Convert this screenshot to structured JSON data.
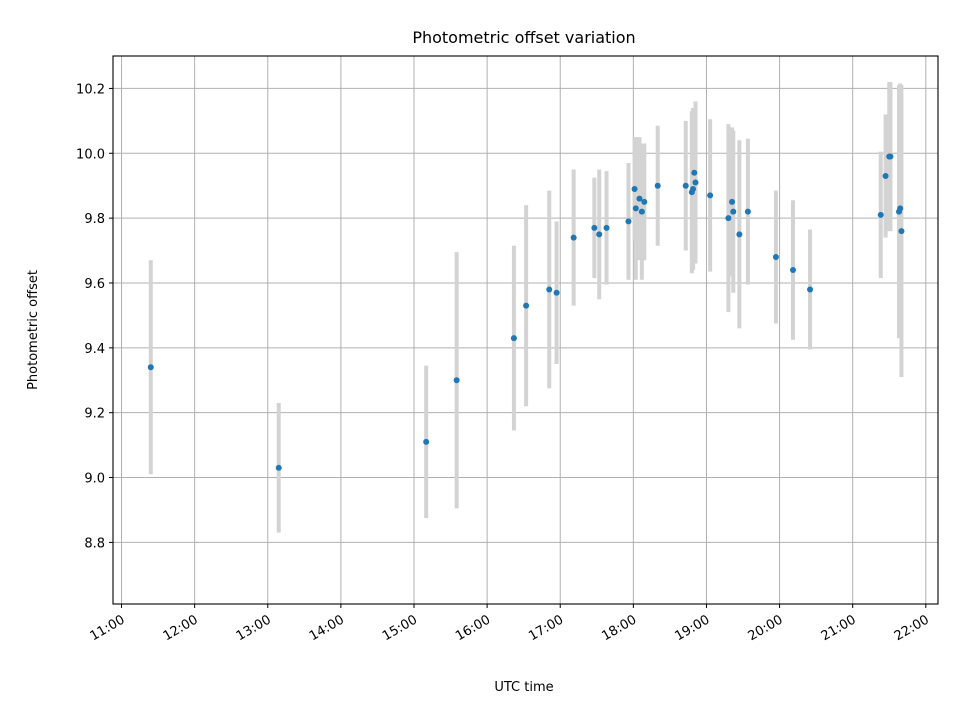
{
  "chart_data": {
    "type": "scatter",
    "title": "Photometric offset variation",
    "xlabel": "UTC time",
    "ylabel": "Photometric offset",
    "xlim": [
      "10:53",
      "22:10"
    ],
    "ylim": [
      8.61,
      10.3
    ],
    "grid": true,
    "x_ticks": [
      "11:00",
      "12:00",
      "13:00",
      "14:00",
      "15:00",
      "16:00",
      "17:00",
      "18:00",
      "19:00",
      "20:00",
      "21:00",
      "22:00"
    ],
    "y_ticks": [
      "8.8",
      "9.0",
      "9.2",
      "9.4",
      "9.6",
      "9.8",
      "10.0",
      "10.2"
    ],
    "point_color": "#1f77b4",
    "errorbar_color": "#d3d3d3",
    "points": [
      {
        "x": "11:24",
        "y": 9.34,
        "err": 0.33
      },
      {
        "x": "13:09",
        "y": 9.03,
        "err": 0.2
      },
      {
        "x": "15:10",
        "y": 9.11,
        "err": 0.235
      },
      {
        "x": "15:35",
        "y": 9.3,
        "err": 0.395
      },
      {
        "x": "16:22",
        "y": 9.43,
        "err": 0.285
      },
      {
        "x": "16:32",
        "y": 9.53,
        "err": 0.31
      },
      {
        "x": "16:51",
        "y": 9.58,
        "err": 0.305
      },
      {
        "x": "16:57",
        "y": 9.57,
        "err": 0.22
      },
      {
        "x": "17:11",
        "y": 9.74,
        "err": 0.21
      },
      {
        "x": "17:28",
        "y": 9.77,
        "err": 0.155
      },
      {
        "x": "17:32",
        "y": 9.75,
        "err": 0.2
      },
      {
        "x": "17:38",
        "y": 9.77,
        "err": 0.175
      },
      {
        "x": "17:56",
        "y": 9.79,
        "err": 0.18
      },
      {
        "x": "18:01",
        "y": 9.89,
        "err": 0.16
      },
      {
        "x": "18:02",
        "y": 9.83,
        "err": 0.22
      },
      {
        "x": "18:05",
        "y": 9.86,
        "err": 0.19
      },
      {
        "x": "18:07",
        "y": 9.82,
        "err": 0.21
      },
      {
        "x": "18:09",
        "y": 9.85,
        "err": 0.18
      },
      {
        "x": "18:20",
        "y": 9.9,
        "err": 0.185
      },
      {
        "x": "18:43",
        "y": 9.9,
        "err": 0.2
      },
      {
        "x": "18:48",
        "y": 9.88,
        "err": 0.25
      },
      {
        "x": "18:49",
        "y": 9.89,
        "err": 0.25
      },
      {
        "x": "18:50",
        "y": 9.94,
        "err": 0.2
      },
      {
        "x": "18:51",
        "y": 9.91,
        "err": 0.25
      },
      {
        "x": "19:03",
        "y": 9.87,
        "err": 0.235
      },
      {
        "x": "19:18",
        "y": 9.8,
        "err": 0.29
      },
      {
        "x": "19:21",
        "y": 9.85,
        "err": 0.23
      },
      {
        "x": "19:22",
        "y": 9.82,
        "err": 0.25
      },
      {
        "x": "19:27",
        "y": 9.75,
        "err": 0.29
      },
      {
        "x": "19:34",
        "y": 9.82,
        "err": 0.225
      },
      {
        "x": "19:57",
        "y": 9.68,
        "err": 0.205
      },
      {
        "x": "20:11",
        "y": 9.64,
        "err": 0.215
      },
      {
        "x": "20:25",
        "y": 9.58,
        "err": 0.185
      },
      {
        "x": "21:23",
        "y": 9.81,
        "err": 0.195
      },
      {
        "x": "21:27",
        "y": 9.93,
        "err": 0.19
      },
      {
        "x": "21:30",
        "y": 9.99,
        "err": 0.23
      },
      {
        "x": "21:31",
        "y": 9.99,
        "err": 0.23
      },
      {
        "x": "21:38",
        "y": 9.82,
        "err": 0.39
      },
      {
        "x": "21:39",
        "y": 9.83,
        "err": 0.385
      },
      {
        "x": "21:40",
        "y": 9.76,
        "err": 0.45
      }
    ]
  }
}
